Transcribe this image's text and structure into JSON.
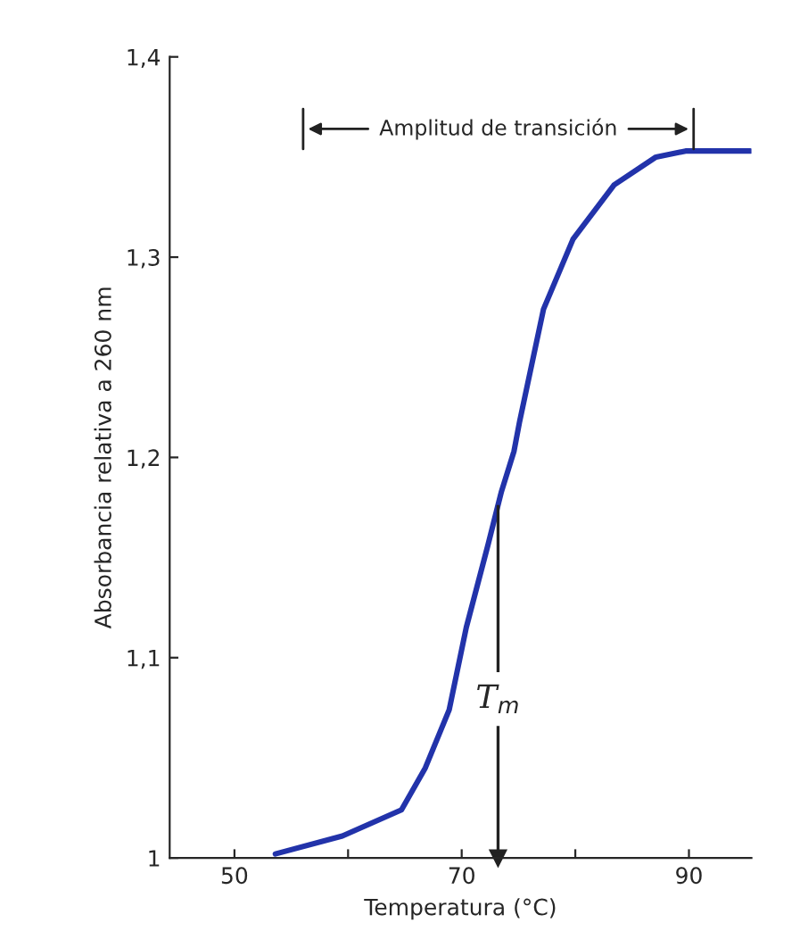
{
  "chart_data": {
    "type": "line",
    "xlabel": "Temperatura (°C)",
    "ylabel": "Absorbancia relativa a 260 nm",
    "x": [
      53.6,
      59.5,
      64.7,
      66.8,
      68.9,
      70.4,
      72.3,
      73.5,
      74.6,
      75.1,
      77.2,
      79.8,
      83.4,
      87.1,
      89.7,
      95.4
    ],
    "series": [
      {
        "color": "#2233aa",
        "values": [
          1.002,
          1.011,
          1.024,
          1.045,
          1.074,
          1.115,
          1.156,
          1.183,
          1.203,
          1.218,
          1.274,
          1.309,
          1.336,
          1.35,
          1.353,
          1.353
        ]
      }
    ],
    "xlim": [
      44.3,
      95.5
    ],
    "ylim": [
      1,
      1.4
    ],
    "xticks": [
      50,
      {
        "value": 60,
        "label": null
      },
      70,
      {
        "value": 80,
        "label": null
      },
      90
    ],
    "yticks": [
      1,
      {
        "value": 1.1,
        "label": "1,1"
      },
      {
        "value": 1.2,
        "label": "1,2"
      },
      {
        "value": 1.3,
        "label": "1,3"
      },
      {
        "value": 1.4,
        "label": "1,4"
      }
    ],
    "ref_lines": [
      {
        "axis": "x",
        "value": 73.2,
        "label": "T$_{m}$",
        "color": "#222222"
      }
    ],
    "annotations": [
      "Amplitud de transición"
    ],
    "grid": false,
    "marker": "none",
    "line_style": "solid"
  }
}
